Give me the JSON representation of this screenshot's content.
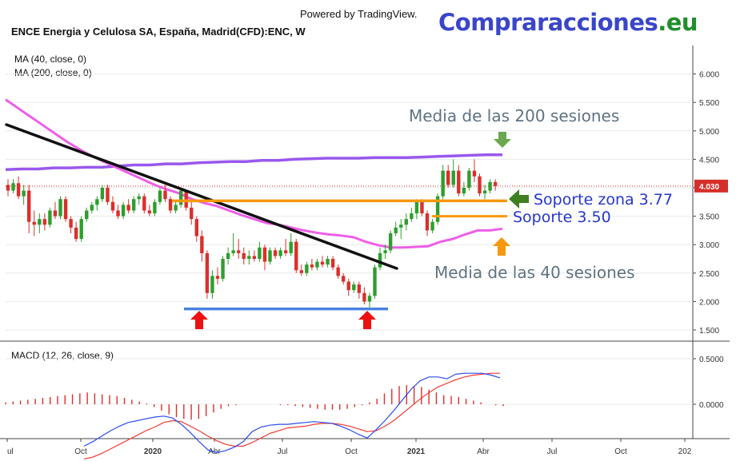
{
  "header": {
    "powered": "Powered by TradingView.",
    "brand_main": "Compraracciones",
    "brand_tld": ".eu",
    "symbol": "ENCE Energia y Celulosa SA, España, Madrid(CFD):ENC, W",
    "ma40": "MA (40, close, 0)",
    "ma200": "MA (200, close, 0)",
    "macd": "MACD (12, 26, close, 9)"
  },
  "colors": {
    "up": "#2e9e2e",
    "down": "#d9302c",
    "ma40": "#ee5ee8",
    "ma200": "#9958ee",
    "trend": "#111111",
    "support": "#f7980f",
    "bottom": "#4a82e0",
    "arrow_red": "#ee1111",
    "arrow_green_top": "#6aa84f",
    "arrow_green": "#3f7f1f",
    "arrow_orange": "#f7980f",
    "macd_line": "#2b4bee",
    "signal_line": "#ee3b33",
    "hist": "#d9302c",
    "price_badge": "#d62f2a"
  },
  "chart_data": [
    {
      "type": "candlestick",
      "title": "ENCE Energia y Celulosa SA, España, Madrid(CFD):ENC, W",
      "x_ticks": [
        "ul",
        "Oct",
        "2020",
        "Abr",
        "Jul",
        "Oct",
        "2021",
        "Abr",
        "Jul",
        "Oct",
        "202"
      ],
      "y_ticks": [
        "1.500",
        "2.000",
        "2.500",
        "3.000",
        "3.500",
        "4.000",
        "4.500",
        "5.000",
        "5.500",
        "6.000"
      ],
      "ylim": [
        1.2,
        6.4
      ],
      "last_price": "4.030",
      "candles": [
        [
          4.05,
          4.15,
          3.85,
          3.95
        ],
        [
          3.95,
          4.15,
          3.9,
          4.08
        ],
        [
          4.08,
          4.2,
          3.8,
          3.85
        ],
        [
          3.85,
          4.05,
          3.7,
          3.95
        ],
        [
          3.95,
          4.05,
          3.2,
          3.4
        ],
        [
          3.4,
          3.6,
          3.15,
          3.35
        ],
        [
          3.35,
          3.55,
          3.2,
          3.45
        ],
        [
          3.45,
          3.55,
          3.25,
          3.35
        ],
        [
          3.35,
          3.65,
          3.3,
          3.6
        ],
        [
          3.6,
          3.75,
          3.45,
          3.5
        ],
        [
          3.5,
          3.85,
          3.45,
          3.8
        ],
        [
          3.8,
          3.85,
          3.4,
          3.45
        ],
        [
          3.45,
          3.5,
          3.2,
          3.3
        ],
        [
          3.3,
          3.4,
          3.05,
          3.1
        ],
        [
          3.1,
          3.5,
          3.05,
          3.45
        ],
        [
          3.45,
          3.65,
          3.4,
          3.6
        ],
        [
          3.6,
          3.75,
          3.55,
          3.7
        ],
        [
          3.7,
          3.85,
          3.6,
          3.8
        ],
        [
          3.8,
          4.05,
          3.75,
          4.0
        ],
        [
          4.0,
          4.05,
          3.7,
          3.75
        ],
        [
          3.75,
          3.85,
          3.55,
          3.6
        ],
        [
          3.6,
          3.7,
          3.45,
          3.5
        ],
        [
          3.5,
          3.75,
          3.45,
          3.7
        ],
        [
          3.7,
          3.8,
          3.55,
          3.6
        ],
        [
          3.6,
          3.85,
          3.55,
          3.8
        ],
        [
          3.8,
          3.9,
          3.7,
          3.85
        ],
        [
          3.85,
          3.9,
          3.55,
          3.6
        ],
        [
          3.6,
          3.7,
          3.5,
          3.55
        ],
        [
          3.55,
          3.8,
          3.5,
          3.75
        ],
        [
          3.75,
          4.0,
          3.7,
          3.95
        ],
        [
          3.95,
          4.05,
          3.75,
          3.8
        ],
        [
          3.8,
          3.85,
          3.55,
          3.6
        ],
        [
          3.6,
          3.75,
          3.55,
          3.7
        ],
        [
          3.7,
          4.0,
          3.65,
          3.95
        ],
        [
          3.95,
          3.95,
          3.6,
          3.65
        ],
        [
          3.65,
          3.75,
          3.35,
          3.45
        ],
        [
          3.45,
          3.5,
          3.05,
          3.15
        ],
        [
          3.15,
          3.25,
          2.7,
          2.85
        ],
        [
          2.85,
          2.9,
          2.05,
          2.15
        ],
        [
          2.15,
          2.55,
          2.05,
          2.45
        ],
        [
          2.45,
          2.6,
          2.3,
          2.4
        ],
        [
          2.4,
          2.8,
          2.35,
          2.75
        ],
        [
          2.75,
          2.95,
          2.65,
          2.85
        ],
        [
          2.85,
          3.2,
          2.8,
          2.9
        ],
        [
          2.9,
          3.1,
          2.75,
          2.85
        ],
        [
          2.85,
          2.95,
          2.65,
          2.75
        ],
        [
          2.75,
          2.9,
          2.65,
          2.8
        ],
        [
          2.8,
          2.9,
          2.7,
          2.75
        ],
        [
          2.75,
          3.05,
          2.7,
          2.95
        ],
        [
          2.95,
          3.0,
          2.55,
          2.7
        ],
        [
          2.7,
          2.95,
          2.65,
          2.9
        ],
        [
          2.9,
          2.95,
          2.75,
          2.8
        ],
        [
          2.8,
          2.95,
          2.75,
          2.9
        ],
        [
          2.9,
          3.1,
          2.8,
          2.85
        ],
        [
          2.85,
          3.2,
          2.8,
          3.05
        ],
        [
          3.05,
          3.1,
          2.5,
          2.55
        ],
        [
          2.55,
          2.65,
          2.45,
          2.5
        ],
        [
          2.5,
          2.7,
          2.45,
          2.65
        ],
        [
          2.65,
          2.75,
          2.55,
          2.6
        ],
        [
          2.6,
          2.75,
          2.55,
          2.7
        ],
        [
          2.7,
          2.8,
          2.6,
          2.65
        ],
        [
          2.65,
          2.8,
          2.6,
          2.75
        ],
        [
          2.75,
          2.8,
          2.55,
          2.6
        ],
        [
          2.6,
          2.65,
          2.4,
          2.45
        ],
        [
          2.45,
          2.5,
          2.3,
          2.35
        ],
        [
          2.35,
          2.4,
          2.1,
          2.2
        ],
        [
          2.2,
          2.35,
          2.15,
          2.3
        ],
        [
          2.3,
          2.35,
          2.05,
          2.15
        ],
        [
          2.15,
          2.25,
          1.95,
          2.0
        ],
        [
          2.0,
          2.15,
          1.9,
          2.1
        ],
        [
          2.1,
          2.65,
          2.05,
          2.6
        ],
        [
          2.6,
          2.95,
          2.55,
          2.85
        ],
        [
          2.85,
          3.0,
          2.75,
          2.9
        ],
        [
          2.9,
          3.25,
          2.85,
          3.2
        ],
        [
          3.2,
          3.4,
          3.15,
          3.3
        ],
        [
          3.3,
          3.45,
          3.1,
          3.35
        ],
        [
          3.35,
          3.55,
          3.25,
          3.45
        ],
        [
          3.45,
          3.65,
          3.4,
          3.55
        ],
        [
          3.55,
          3.8,
          3.45,
          3.75
        ],
        [
          3.75,
          3.8,
          3.5,
          3.55
        ],
        [
          3.55,
          3.6,
          3.15,
          3.25
        ],
        [
          3.25,
          3.45,
          3.2,
          3.4
        ],
        [
          3.4,
          3.9,
          3.35,
          3.85
        ],
        [
          3.85,
          4.4,
          3.8,
          4.3
        ],
        [
          4.3,
          4.4,
          4.0,
          4.05
        ],
        [
          4.05,
          4.5,
          4.0,
          4.3
        ],
        [
          4.3,
          4.4,
          3.85,
          3.9
        ],
        [
          3.9,
          4.1,
          3.85,
          4.0
        ],
        [
          4.0,
          4.35,
          3.95,
          4.3
        ],
        [
          4.3,
          4.5,
          4.1,
          4.2
        ],
        [
          4.2,
          4.25,
          3.85,
          3.9
        ],
        [
          3.9,
          4.05,
          3.8,
          3.95
        ],
        [
          3.95,
          4.15,
          3.9,
          4.1
        ],
        [
          4.1,
          4.15,
          3.95,
          4.03
        ]
      ],
      "ma40": [
        5.55,
        5.4,
        5.25,
        5.1,
        4.95,
        4.8,
        4.67,
        4.55,
        4.45,
        4.35,
        4.25,
        4.15,
        4.05,
        3.97,
        3.9,
        3.8,
        3.73,
        3.68,
        3.6,
        3.52,
        3.45,
        3.38,
        3.35,
        3.3,
        3.25,
        3.21,
        3.18,
        3.16,
        3.13,
        3.05,
        2.99,
        2.95,
        2.95,
        2.96,
        2.97,
        3.05,
        3.1,
        3.18,
        3.25,
        3.25,
        3.28
      ],
      "ma200": [
        4.32,
        4.33,
        4.33,
        4.35,
        4.35,
        4.36,
        4.36,
        4.38,
        4.4,
        4.4,
        4.42,
        4.42,
        4.44,
        4.45,
        4.46,
        4.46,
        4.48,
        4.48,
        4.5,
        4.51,
        4.52,
        4.52,
        4.52,
        4.53,
        4.53,
        4.53,
        4.54,
        4.55,
        4.56,
        4.57,
        4.58,
        4.58
      ],
      "annotations": {
        "ma200_label": "Media de las 200 sesiones",
        "ma40_label": "Media de las 40 sesiones",
        "support_377": "Soporte zona 3.77",
        "support_350": "Soporte 3.50"
      },
      "support_levels": [
        3.77,
        3.5
      ],
      "bottom_level": 1.87
    },
    {
      "type": "macd",
      "title": "MACD (12, 26, close, 9)",
      "y_ticks": [
        "0.5000",
        "0.0000"
      ],
      "ylim": [
        -0.6,
        0.6
      ],
      "macd": [
        -0.46,
        -0.41,
        -0.35,
        -0.29,
        -0.24,
        -0.2,
        -0.18,
        -0.16,
        -0.14,
        -0.13,
        -0.15,
        -0.22,
        -0.31,
        -0.41,
        -0.5,
        -0.53,
        -0.51,
        -0.47,
        -0.41,
        -0.3,
        -0.25,
        -0.23,
        -0.22,
        -0.22,
        -0.21,
        -0.2,
        -0.19,
        -0.2,
        -0.21,
        -0.24,
        -0.28,
        -0.33,
        -0.37,
        -0.28,
        -0.18,
        -0.07,
        0.05,
        0.17,
        0.26,
        0.3,
        0.3,
        0.28,
        0.33,
        0.34,
        0.34,
        0.34,
        0.32,
        0.29
      ],
      "signal": [
        -0.6,
        -0.58,
        -0.54,
        -0.49,
        -0.44,
        -0.39,
        -0.34,
        -0.29,
        -0.25,
        -0.2,
        -0.18,
        -0.19,
        -0.24,
        -0.29,
        -0.35,
        -0.4,
        -0.44,
        -0.46,
        -0.46,
        -0.42,
        -0.37,
        -0.32,
        -0.29,
        -0.26,
        -0.25,
        -0.24,
        -0.22,
        -0.21,
        -0.21,
        -0.22,
        -0.24,
        -0.27,
        -0.3,
        -0.29,
        -0.24,
        -0.18,
        -0.1,
        -0.02,
        0.06,
        0.13,
        0.19,
        0.23,
        0.27,
        0.3,
        0.32,
        0.33,
        0.34,
        0.34
      ],
      "histogram": [
        0.02,
        0.03,
        0.04,
        0.05,
        0.06,
        0.07,
        0.08,
        0.09,
        0.1,
        0.11,
        0.12,
        0.13,
        0.12,
        0.11,
        0.1,
        0.09,
        0.07,
        0.05,
        0.03,
        0.01,
        -0.03,
        -0.07,
        -0.11,
        -0.14,
        -0.16,
        -0.17,
        -0.16,
        -0.13,
        -0.09,
        -0.05,
        -0.02,
        -0.01,
        0.0,
        0.0,
        0.0,
        0.0,
        0.0,
        -0.01,
        -0.01,
        -0.02,
        -0.03,
        -0.04,
        -0.05,
        -0.06,
        -0.06,
        -0.06,
        -0.05,
        -0.03,
        -0.01,
        0.02,
        0.06,
        0.12,
        0.17,
        0.2,
        0.21,
        0.2,
        0.19,
        0.16,
        0.13,
        0.1,
        0.09,
        0.08,
        0.06,
        0.04,
        0.02,
        0.0,
        -0.01,
        -0.02
      ]
    }
  ]
}
